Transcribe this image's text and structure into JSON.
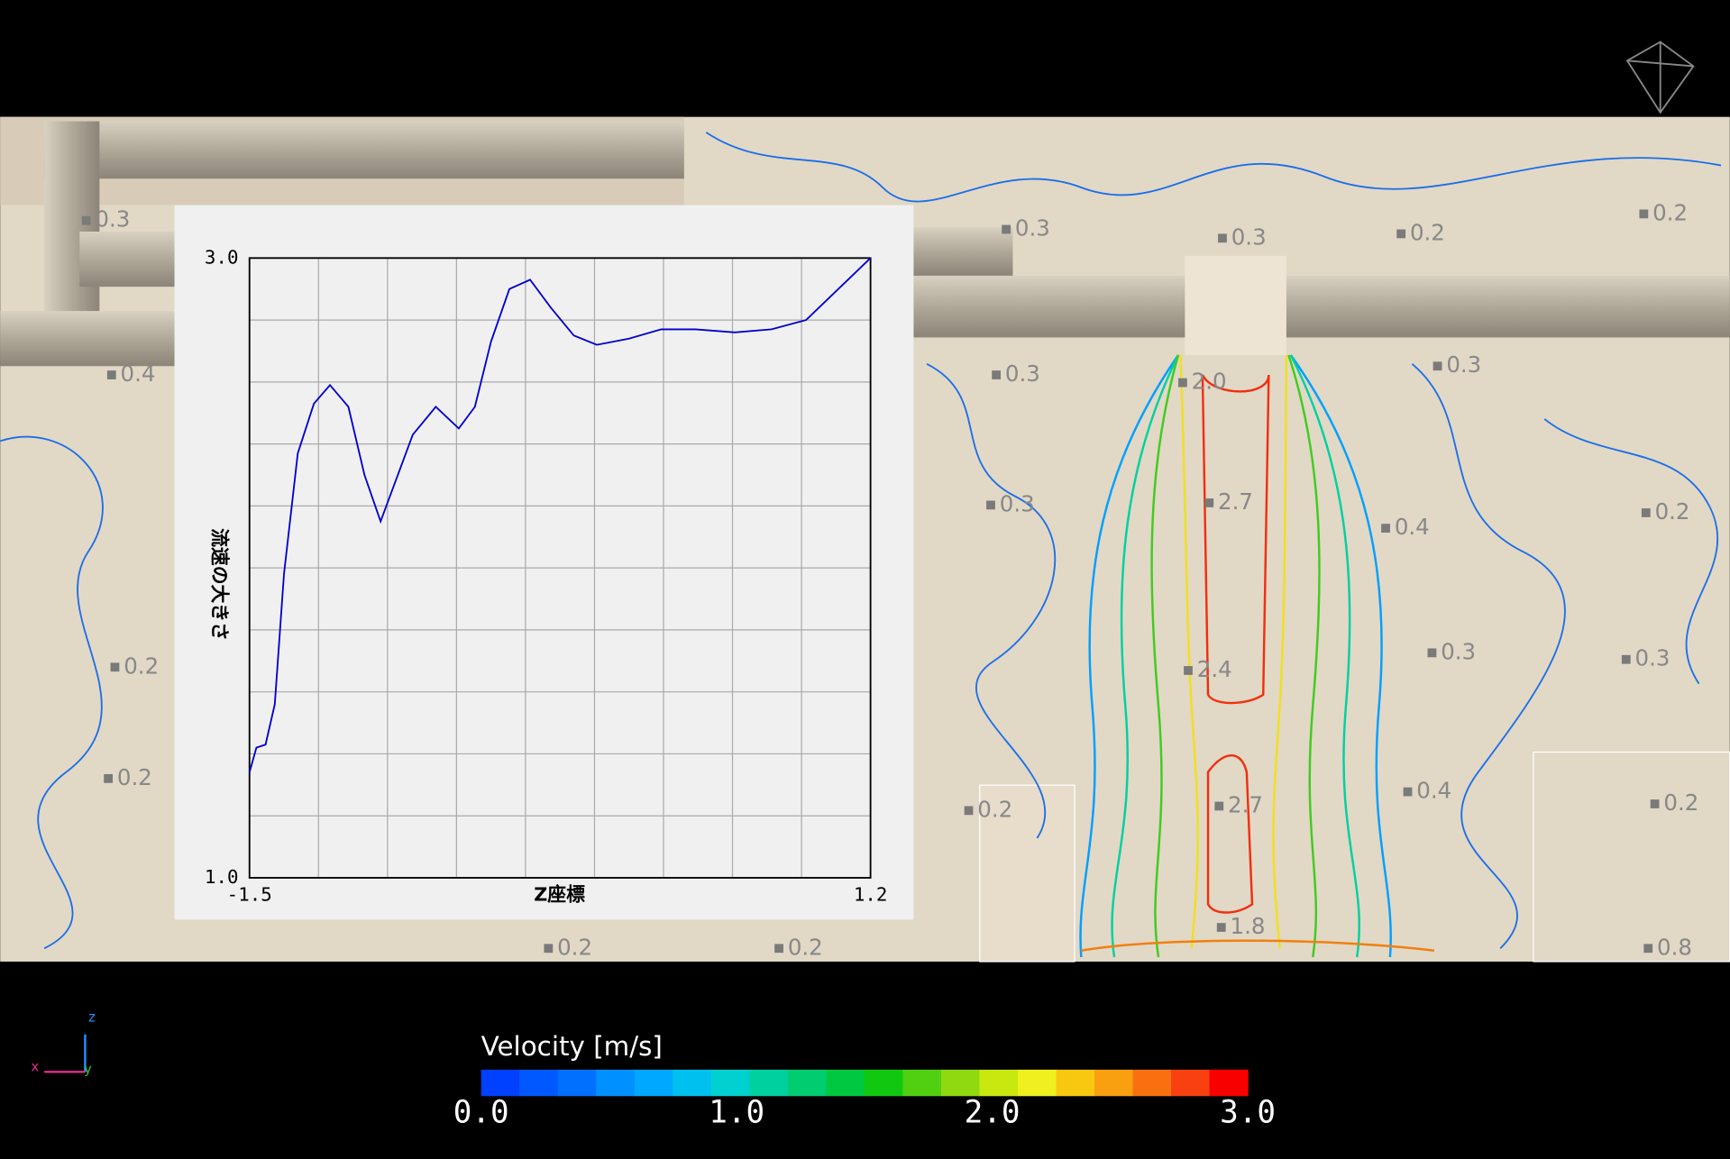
{
  "chart_data": {
    "type": "line",
    "xlabel": "Z座標",
    "ylabel": "流速の大きさ",
    "x": [
      -1.5,
      -1.47,
      -1.43,
      -1.39,
      -1.35,
      -1.29,
      -1.22,
      -1.15,
      -1.07,
      -1.0,
      -0.93,
      -0.87,
      -0.79,
      -0.69,
      -0.59,
      -0.52,
      -0.45,
      -0.37,
      -0.28,
      -0.19,
      -0.09,
      0.01,
      0.15,
      0.29,
      0.44,
      0.61,
      0.77,
      0.92,
      1.06,
      1.2
    ],
    "series": [
      {
        "color": "#0000cc",
        "values": [
          1.34,
          1.42,
          1.43,
          1.56,
          1.98,
          2.37,
          2.53,
          2.59,
          2.52,
          2.3,
          2.15,
          2.27,
          2.43,
          2.52,
          2.45,
          2.52,
          2.73,
          2.9,
          2.93,
          2.84,
          2.75,
          2.72,
          2.74,
          2.77,
          2.77,
          2.76,
          2.77,
          2.8,
          2.9,
          3.0
        ]
      }
    ],
    "xlim": [
      -1.5,
      1.2
    ],
    "ylim": [
      1,
      3
    ],
    "xticks": [
      -1.5,
      1.2
    ],
    "yticks": [
      {
        "value": 1,
        "label": "1.0"
      },
      {
        "value": 3,
        "label": "3.0"
      }
    ],
    "xgrid": [
      -1.5,
      -1.2,
      -0.9,
      -0.6,
      -0.3,
      0,
      0.3,
      0.6,
      0.9,
      1.2
    ],
    "ygrid": [
      1,
      1.2,
      1.4,
      1.6,
      1.8,
      2,
      2.2,
      2.4,
      2.6,
      2.8,
      3
    ],
    "grid": true
  },
  "contour_labels": [
    "0.3",
    "0.3",
    "0.3",
    "0.2",
    "0.2",
    "0.4",
    "0.3",
    "2.0",
    "0.3",
    "0.3",
    "2.7",
    "0.4",
    "0.2",
    "0.2",
    "2.4",
    "0.3",
    "0.3",
    "0.2",
    "0.2",
    "2.7",
    "0.4",
    "0.2",
    "0.2",
    "0.2",
    "1.8",
    "0.8"
  ],
  "colorbar": {
    "title": "Velocity  [m/s]",
    "labels": [
      "0.0",
      "1.0",
      "2.0",
      "3.0"
    ],
    "colors": [
      "#0040ff",
      "#0058ff",
      "#0070ff",
      "#0090ff",
      "#00a8ff",
      "#00c0f0",
      "#00d0d0",
      "#00d0a0",
      "#00cc70",
      "#00c840",
      "#10c810",
      "#50d010",
      "#90d810",
      "#c8e810",
      "#f0f020",
      "#f8c810",
      "#f8a010",
      "#f87010",
      "#f84010",
      "#f80000"
    ]
  },
  "axes_triad": {
    "z": "z",
    "x": "x",
    "y": "y"
  }
}
